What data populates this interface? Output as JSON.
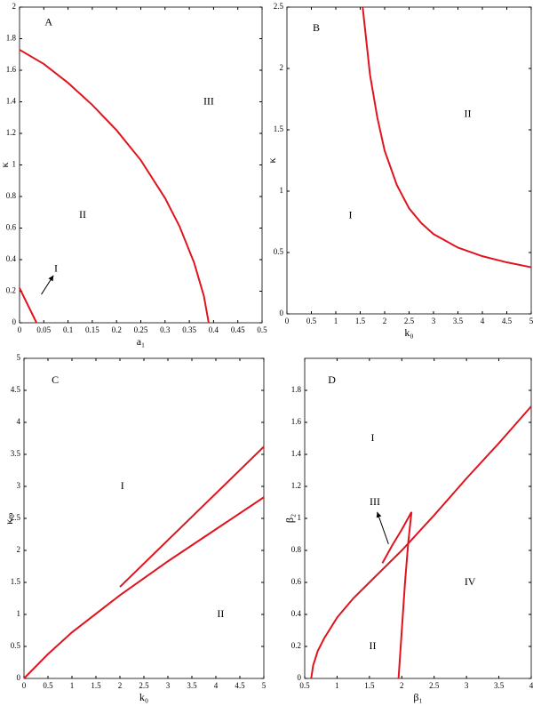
{
  "chart_data": [
    {
      "type": "line",
      "panel_label": "A",
      "xlabel": "a₁",
      "ylabel": "κ",
      "xlim": [
        0,
        0.5
      ],
      "ylim": [
        0,
        2
      ],
      "xticks": [
        0,
        0.05,
        0.1,
        0.15,
        0.2,
        0.25,
        0.3,
        0.35,
        0.4,
        0.45,
        0.5
      ],
      "yticks": [
        0,
        0.2,
        0.4,
        0.6,
        0.8,
        1,
        1.2,
        1.4,
        1.6,
        1.8,
        2
      ],
      "annotations": [
        "III",
        "II",
        "I"
      ],
      "series": [
        {
          "color": "#e0141e",
          "x": [
            0,
            0.05,
            0.1,
            0.15,
            0.2,
            0.25,
            0.3,
            0.33,
            0.36,
            0.38,
            0.39
          ],
          "values": [
            1.73,
            1.64,
            1.52,
            1.38,
            1.22,
            1.03,
            0.79,
            0.61,
            0.38,
            0.17,
            0
          ]
        },
        {
          "color": "#e0141e",
          "x": [
            0,
            0.035
          ],
          "values": [
            0.22,
            0
          ]
        }
      ]
    },
    {
      "type": "line",
      "panel_label": "B",
      "xlabel": "k₀",
      "ylabel": "κ",
      "xlim": [
        0,
        5
      ],
      "ylim": [
        0,
        2.5
      ],
      "xticks": [
        0,
        0.5,
        1,
        1.5,
        2,
        2.5,
        3,
        3.5,
        4,
        4.5,
        5
      ],
      "yticks": [
        0,
        0.5,
        1,
        1.5,
        2,
        2.5
      ],
      "annotations": [
        "II",
        "I"
      ],
      "series": [
        {
          "color": "#e0141e",
          "x": [
            1.55,
            1.7,
            1.85,
            2,
            2.25,
            2.5,
            2.75,
            3,
            3.5,
            4,
            4.5,
            5
          ],
          "values": [
            2.5,
            1.95,
            1.6,
            1.33,
            1.05,
            0.86,
            0.74,
            0.65,
            0.54,
            0.47,
            0.42,
            0.38
          ]
        }
      ]
    },
    {
      "type": "line",
      "panel_label": "C",
      "xlabel": "k₀",
      "ylabel": "κₘ",
      "xlim": [
        0,
        5
      ],
      "ylim": [
        0,
        5
      ],
      "xticks": [
        0,
        0.5,
        1,
        1.5,
        2,
        2.5,
        3,
        3.5,
        4,
        4.5,
        5
      ],
      "yticks": [
        0,
        0.5,
        1,
        1.5,
        2,
        2.5,
        3,
        3.5,
        4,
        4.5,
        5
      ],
      "annotations": [
        "I",
        "II"
      ],
      "series": [
        {
          "color": "#e0141e",
          "x": [
            0,
            0.5,
            1,
            2,
            3,
            4,
            5
          ],
          "values": [
            0,
            0.38,
            0.72,
            1.3,
            1.83,
            2.33,
            2.83
          ]
        },
        {
          "color": "#e0141e",
          "x": [
            2,
            5
          ],
          "values": [
            1.43,
            3.62
          ]
        }
      ]
    },
    {
      "type": "line",
      "panel_label": "D",
      "xlabel": "β₁",
      "ylabel": "β₂",
      "xlim": [
        0.5,
        4
      ],
      "ylim": [
        0,
        2
      ],
      "xticks": [
        0.5,
        1,
        1.5,
        2,
        2.5,
        3,
        3.5,
        4
      ],
      "yticks": [
        0,
        0.2,
        0.4,
        0.6,
        0.8,
        1,
        1.2,
        1.4,
        1.6,
        1.8
      ],
      "annotations": [
        "I",
        "III",
        "II",
        "IV"
      ],
      "series": [
        {
          "color": "#e0141e",
          "x": [
            0.6,
            0.63,
            0.7,
            0.8,
            1,
            1.25,
            1.5,
            2,
            2.5,
            3,
            3.5,
            4
          ],
          "values": [
            0,
            0.08,
            0.17,
            0.25,
            0.38,
            0.5,
            0.6,
            0.8,
            1.02,
            1.25,
            1.47,
            1.7
          ]
        },
        {
          "color": "#e0141e",
          "x": [
            1.95,
            2,
            2.05,
            2.1,
            2.15,
            2.0,
            1.85,
            1.7
          ],
          "values": [
            0,
            0.3,
            0.6,
            0.85,
            1.04,
            0.93,
            0.83,
            0.72
          ]
        }
      ]
    }
  ]
}
